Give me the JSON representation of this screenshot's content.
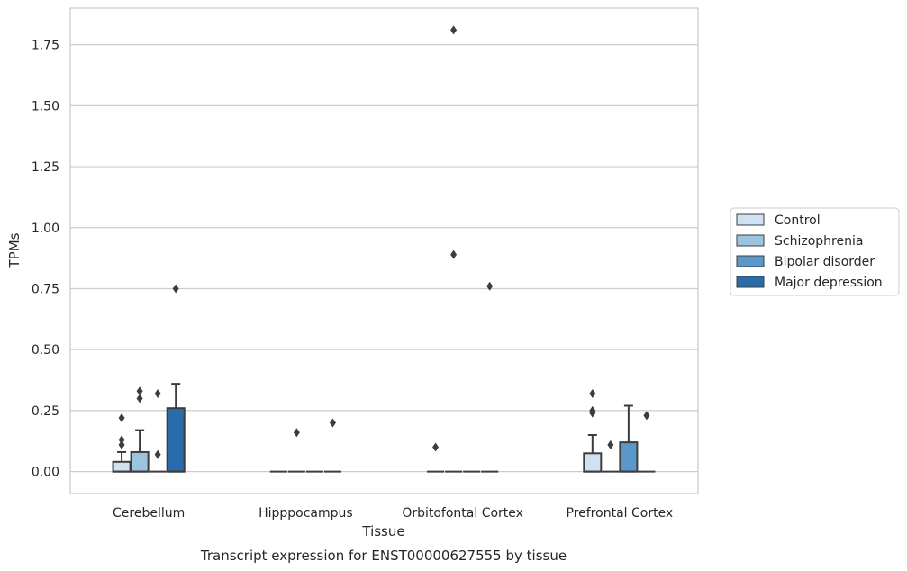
{
  "chart_data": {
    "type": "box",
    "caption": "Transcript expression for ENST00000627555 by tissue",
    "xlabel": "Tissue",
    "ylabel": "TPMs",
    "ylim": [
      -0.09,
      1.9
    ],
    "yticks": [
      "0.00",
      "0.25",
      "0.50",
      "0.75",
      "1.00",
      "1.25",
      "1.50",
      "1.75"
    ],
    "grid": "horizontal",
    "legend_position": "right",
    "categories": [
      "Cerebellum",
      "Hipppocampus",
      "Orbitofontal Cortex",
      "Prefrontal Cortex"
    ],
    "series": [
      {
        "name": "Control",
        "color": "#cfe1f2",
        "boxes": [
          {
            "q1": 0,
            "median": 0,
            "q3": 0.04,
            "whisker_low": 0,
            "whisker_high": 0.08,
            "outliers": [
              0.11,
              0.13,
              0.22
            ]
          },
          {
            "q1": 0,
            "median": 0,
            "q3": 0,
            "whisker_low": 0,
            "whisker_high": 0,
            "outliers": []
          },
          {
            "q1": 0,
            "median": 0,
            "q3": 0,
            "whisker_low": 0,
            "whisker_high": 0,
            "outliers": [
              0.1
            ]
          },
          {
            "q1": 0,
            "median": 0,
            "q3": 0.075,
            "whisker_low": 0,
            "whisker_high": 0.15,
            "outliers": [
              0.24,
              0.25,
              0.32
            ]
          }
        ]
      },
      {
        "name": "Schizophrenia",
        "color": "#9ac4e0",
        "boxes": [
          {
            "q1": 0,
            "median": 0,
            "q3": 0.08,
            "whisker_low": 0,
            "whisker_high": 0.17,
            "outliers": [
              0.3,
              0.33
            ]
          },
          {
            "q1": 0,
            "median": 0,
            "q3": 0,
            "whisker_low": 0,
            "whisker_high": 0,
            "outliers": [
              0.16
            ]
          },
          {
            "q1": 0,
            "median": 0,
            "q3": 0,
            "whisker_low": 0,
            "whisker_high": 0,
            "outliers": [
              1.81,
              0.89
            ]
          },
          {
            "q1": 0,
            "median": 0,
            "q3": 0,
            "whisker_low": 0,
            "whisker_high": 0,
            "outliers": [
              0.11
            ]
          }
        ]
      },
      {
        "name": "Bipolar disorder",
        "color": "#5b98c9",
        "boxes": [
          {
            "q1": 0,
            "median": 0,
            "q3": 0,
            "whisker_low": 0,
            "whisker_high": 0,
            "outliers": [
              0.07,
              0.32
            ]
          },
          {
            "q1": 0,
            "median": 0,
            "q3": 0,
            "whisker_low": 0,
            "whisker_high": 0,
            "outliers": []
          },
          {
            "q1": 0,
            "median": 0,
            "q3": 0,
            "whisker_low": 0,
            "whisker_high": 0,
            "outliers": []
          },
          {
            "q1": 0,
            "median": 0,
            "q3": 0.12,
            "whisker_low": 0,
            "whisker_high": 0.27,
            "outliers": []
          }
        ]
      },
      {
        "name": "Major depression",
        "color": "#2a6ba9",
        "boxes": [
          {
            "q1": 0,
            "median": 0,
            "q3": 0.26,
            "whisker_low": 0,
            "whisker_high": 0.36,
            "outliers": [
              0.75
            ]
          },
          {
            "q1": 0,
            "median": 0,
            "q3": 0,
            "whisker_low": 0,
            "whisker_high": 0,
            "outliers": [
              0.2
            ]
          },
          {
            "q1": 0,
            "median": 0,
            "q3": 0,
            "whisker_low": 0,
            "whisker_high": 0,
            "outliers": [
              0.76
            ]
          },
          {
            "q1": 0,
            "median": 0,
            "q3": 0,
            "whisker_low": 0,
            "whisker_high": 0,
            "outliers": [
              0.23
            ]
          }
        ]
      }
    ]
  }
}
